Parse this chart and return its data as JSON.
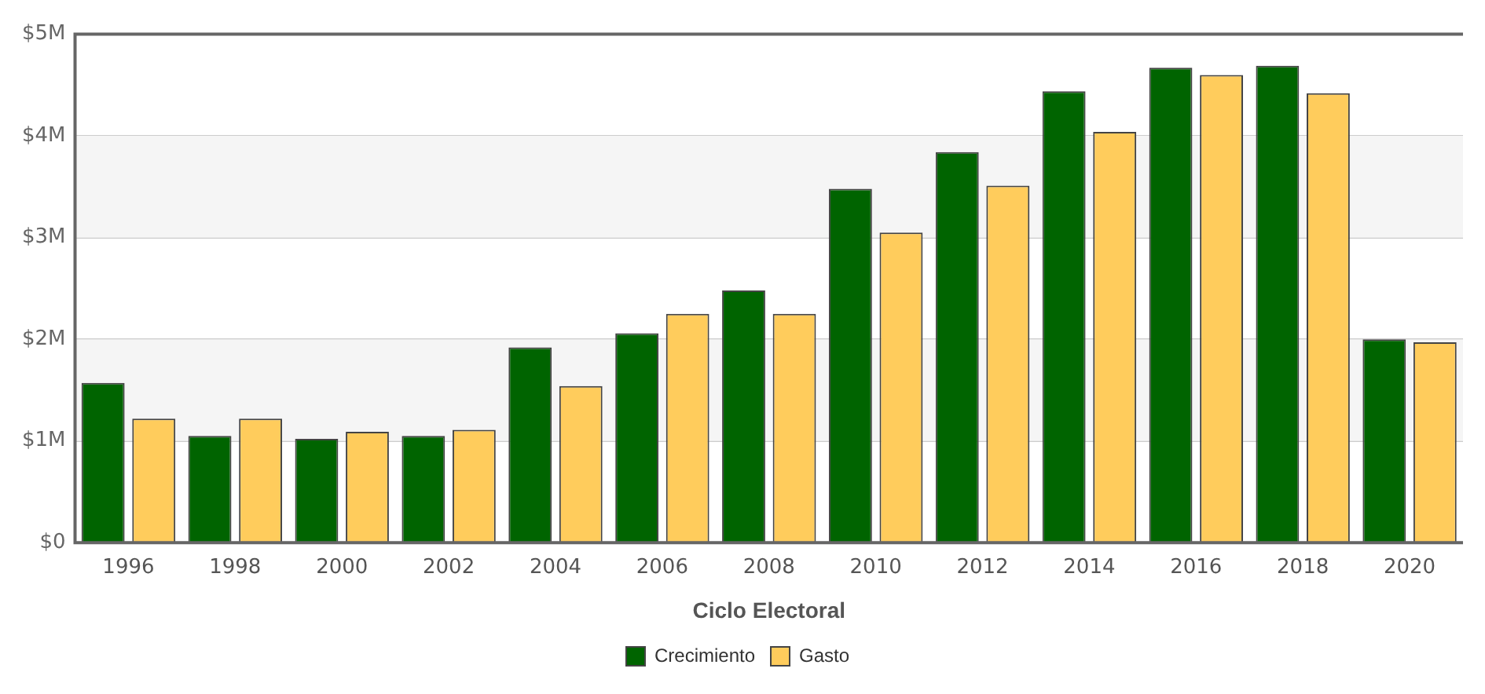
{
  "chart_data": {
    "type": "bar",
    "xlabel": "Ciclo Electoral",
    "categories": [
      "1996",
      "1998",
      "2000",
      "2002",
      "2004",
      "2006",
      "2008",
      "2010",
      "2012",
      "2014",
      "2016",
      "2018",
      "2020"
    ],
    "series": [
      {
        "name": "Crecimiento",
        "color": "#006400",
        "values": [
          1570000,
          1050000,
          1020000,
          1050000,
          1920000,
          2060000,
          2480000,
          3480000,
          3840000,
          4440000,
          4670000,
          4690000,
          2000000
        ]
      },
      {
        "name": "Gasto",
        "color": "#ffcc5c",
        "values": [
          1220000,
          1220000,
          1090000,
          1110000,
          1540000,
          2250000,
          2250000,
          3050000,
          3510000,
          4040000,
          4600000,
          4420000,
          1970000
        ]
      }
    ],
    "ylim": [
      0,
      5000000
    ],
    "yticks": [
      {
        "value": 0,
        "label": "$0"
      },
      {
        "value": 1000000,
        "label": "$1M"
      },
      {
        "value": 2000000,
        "label": "$2M"
      },
      {
        "value": 3000000,
        "label": "$3M"
      },
      {
        "value": 4000000,
        "label": "$4M"
      },
      {
        "value": 5000000,
        "label": "$5M"
      }
    ],
    "bands": [
      {
        "axis": "y",
        "from": 1000000,
        "to": 2000000,
        "color": "#f5f5f5"
      },
      {
        "axis": "y",
        "from": 3000000,
        "to": 4000000,
        "color": "#f5f5f5"
      }
    ],
    "grid": "y",
    "legend": "bottom"
  }
}
